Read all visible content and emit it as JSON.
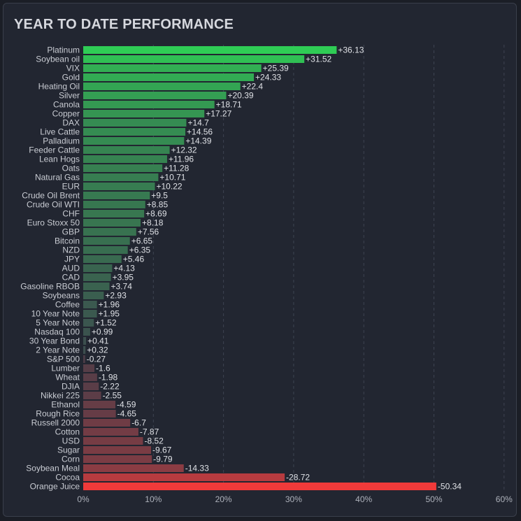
{
  "title": "YEAR TO DATE PERFORMANCE",
  "chart_data": {
    "type": "bar",
    "orientation": "horizontal",
    "title": "YEAR TO DATE PERFORMANCE",
    "xlim": [
      0,
      60
    ],
    "x_ticks": [
      "0%",
      "10%",
      "20%",
      "30%",
      "40%",
      "50%",
      "60%"
    ],
    "grid": "vertical dashed",
    "note": "bar length is the absolute value; labels keep the sign",
    "categories": [
      "Platinum",
      "Soybean oil",
      "VIX",
      "Gold",
      "Heating Oil",
      "Silver",
      "Canola",
      "Copper",
      "DAX",
      "Live Cattle",
      "Palladium",
      "Feeder Cattle",
      "Lean Hogs",
      "Oats",
      "Natural Gas",
      "EUR",
      "Crude Oil Brent",
      "Crude Oil WTI",
      "CHF",
      "Euro Stoxx 50",
      "GBP",
      "Bitcoin",
      "NZD",
      "JPY",
      "AUD",
      "CAD",
      "Gasoline RBOB",
      "Soybeans",
      "Coffee",
      "10 Year Note",
      "5 Year Note",
      "Nasdaq 100",
      "30 Year Bond",
      "2 Year Note",
      "S&P 500",
      "Lumber",
      "Wheat",
      "DJIA",
      "Nikkei 225",
      "Ethanol",
      "Rough Rice",
      "Russell 2000",
      "Cotton",
      "USD",
      "Sugar",
      "Corn",
      "Soybean Meal",
      "Cocoa",
      "Orange Juice"
    ],
    "values": [
      36.13,
      31.52,
      25.39,
      24.33,
      22.4,
      20.39,
      18.71,
      17.27,
      14.7,
      14.56,
      14.39,
      12.32,
      11.96,
      11.28,
      10.71,
      10.22,
      9.5,
      8.85,
      8.69,
      8.18,
      7.56,
      6.65,
      6.35,
      5.46,
      4.13,
      3.95,
      3.74,
      2.93,
      1.96,
      1.95,
      1.52,
      0.99,
      0.41,
      0.32,
      -0.27,
      -1.6,
      -1.98,
      -2.22,
      -2.55,
      -4.59,
      -4.65,
      -6.7,
      -7.87,
      -8.52,
      -9.67,
      -9.79,
      -14.33,
      -28.72,
      -50.34
    ],
    "value_labels": [
      "+36.13",
      "+31.52",
      "+25.39",
      "+24.33",
      "+22.4",
      "+20.39",
      "+18.71",
      "+17.27",
      "+14.7",
      "+14.56",
      "+14.39",
      "+12.32",
      "+11.96",
      "+11.28",
      "+10.71",
      "+10.22",
      "+9.5",
      "+8.85",
      "+8.69",
      "+8.18",
      "+7.56",
      "+6.65",
      "+6.35",
      "+5.46",
      "+4.13",
      "+3.95",
      "+3.74",
      "+2.93",
      "+1.96",
      "+1.95",
      "+1.52",
      "+0.99",
      "+0.41",
      "+0.32",
      "-0.27",
      "-1.6",
      "-1.98",
      "-2.22",
      "-2.55",
      "-4.59",
      "-4.65",
      "-6.7",
      "-7.87",
      "-8.52",
      "-9.67",
      "-9.79",
      "-14.33",
      "-28.72",
      "-50.34"
    ],
    "colors": {
      "positive_strong": "#2fcc55",
      "positive_weak": "#3c4a4e",
      "negative_weak": "#4a3d48",
      "negative_strong": "#f03a3a",
      "grid": "#3e4452",
      "background": "#222631"
    }
  }
}
